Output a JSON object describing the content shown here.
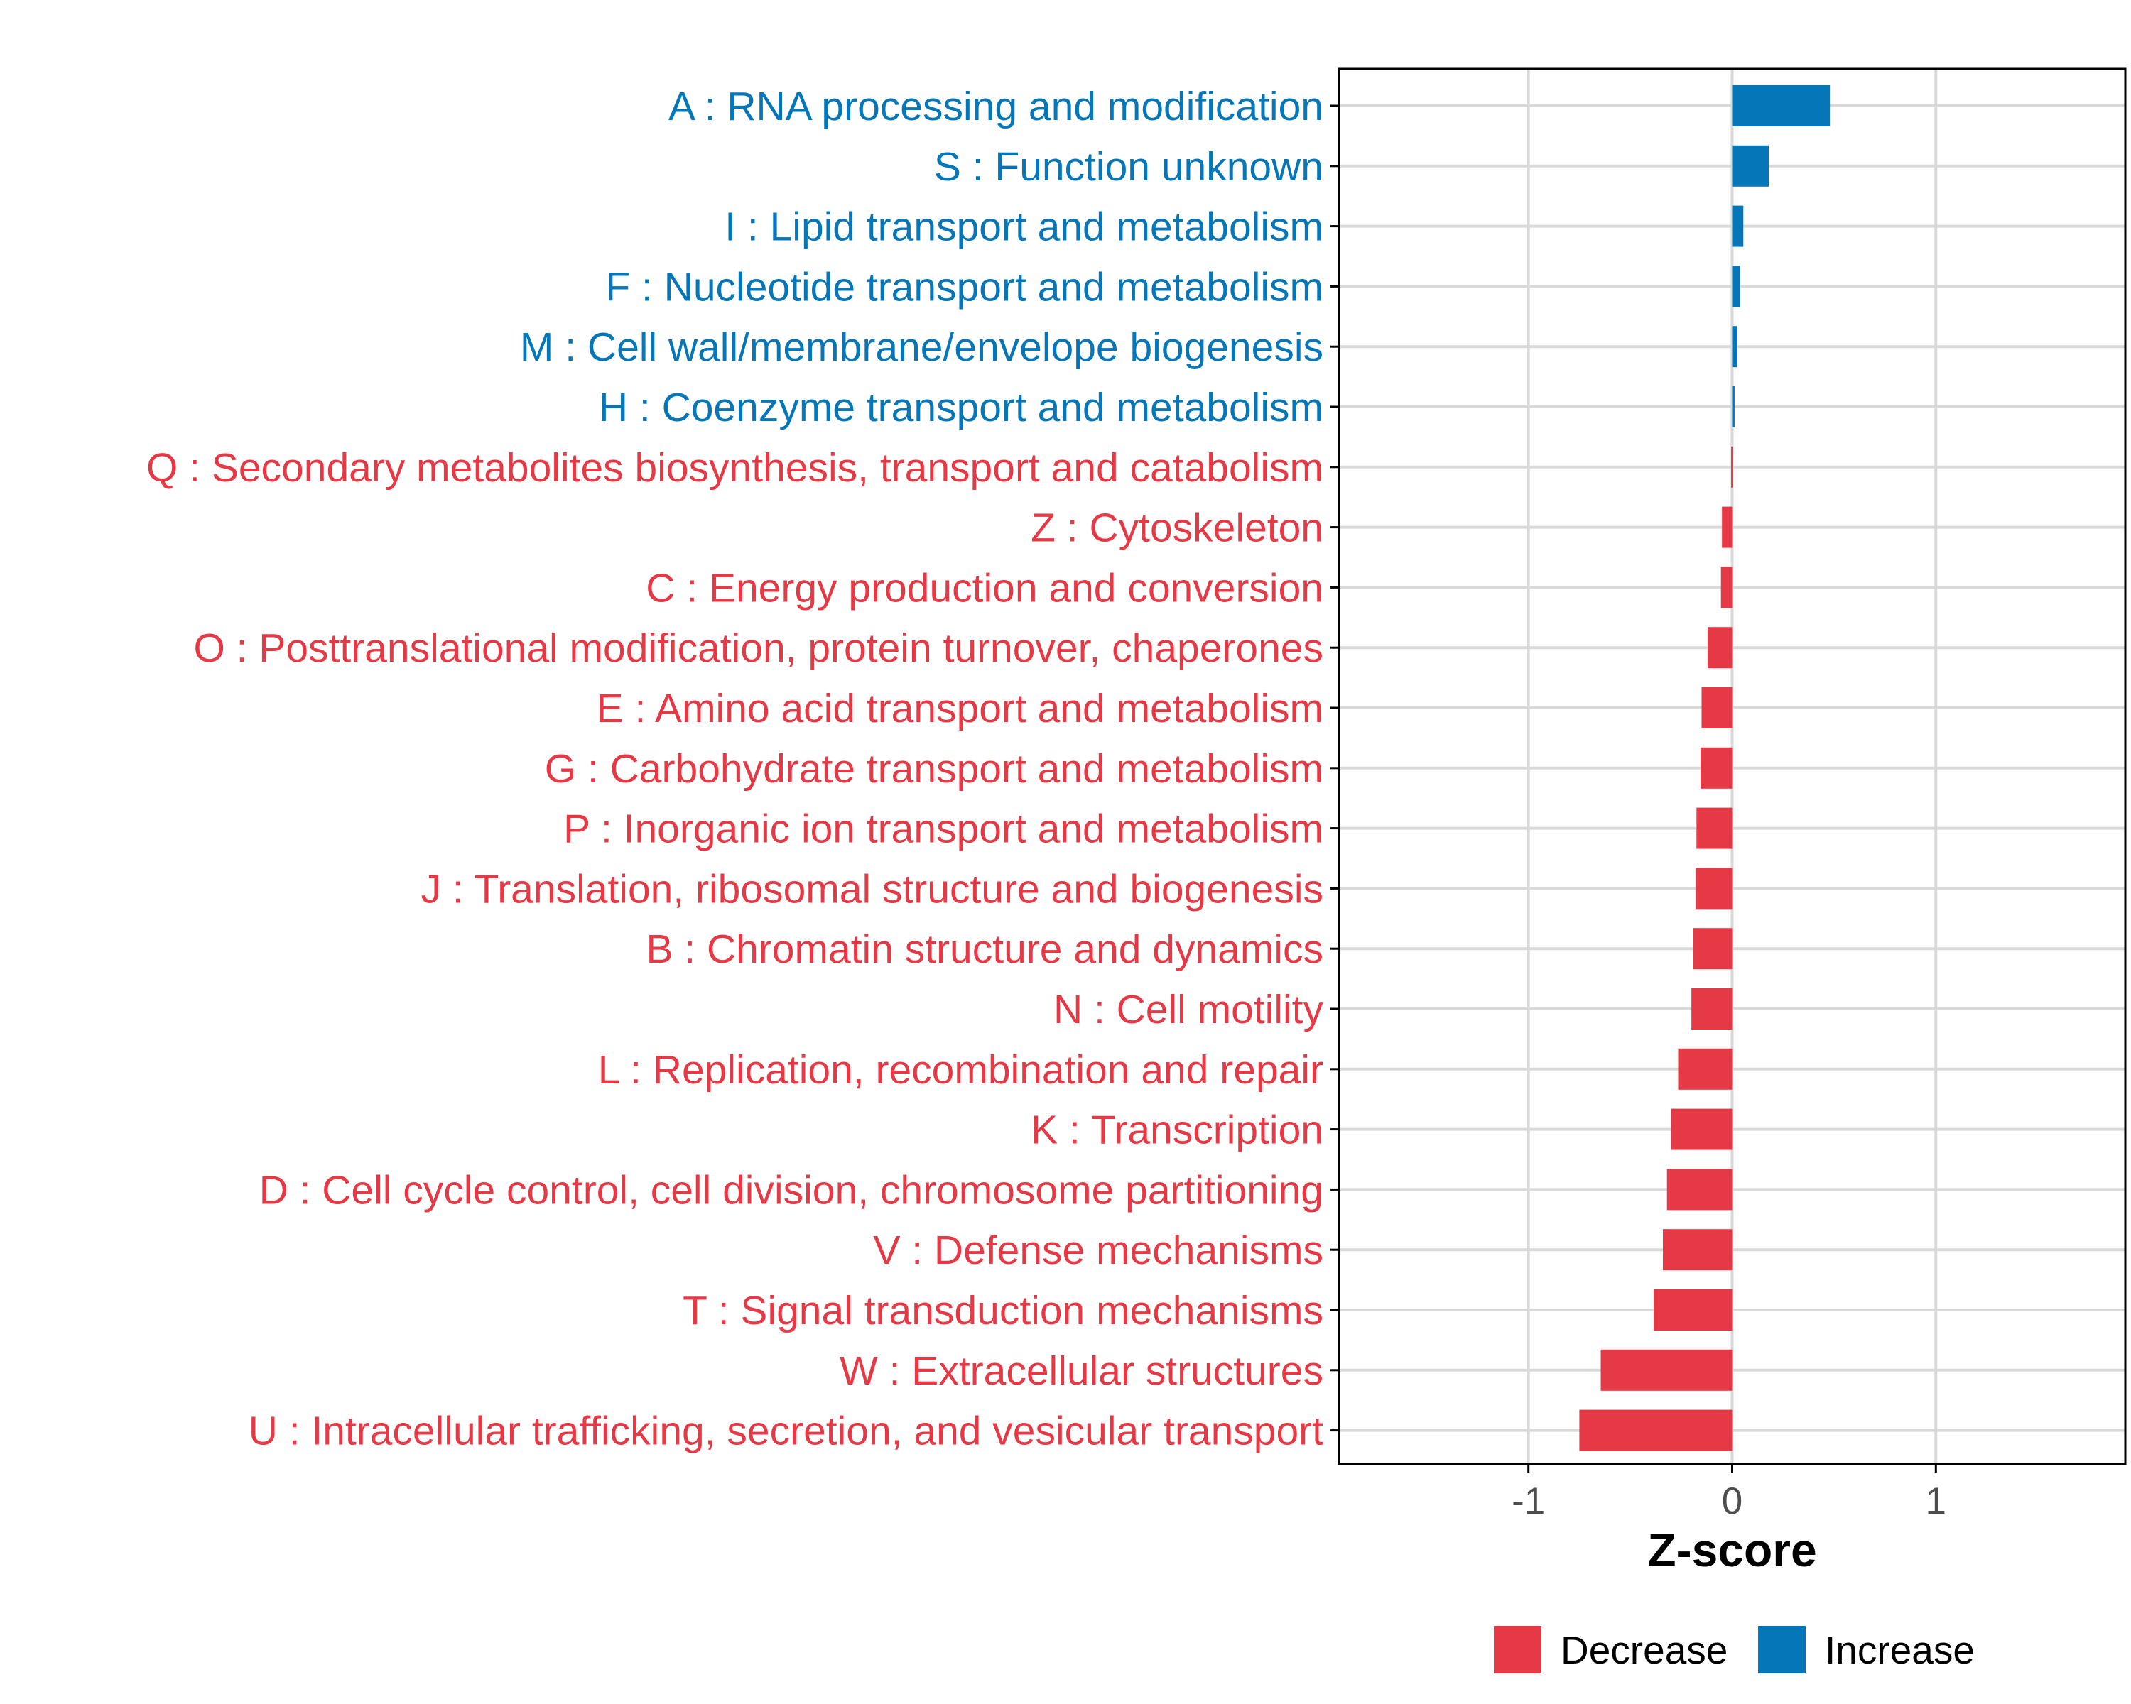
{
  "colors": {
    "decrease": "#e63946",
    "increase": "#0577b8",
    "grid": "#d9d9d9",
    "axis": "#000000",
    "tick_text": "#4d4d4d"
  },
  "chart_data": {
    "type": "bar",
    "orientation": "horizontal",
    "title": "",
    "xlabel": "Z-score",
    "ylabel": "",
    "xlim": [
      -1.93,
      1.93
    ],
    "x_ticks": [
      -1,
      0,
      1
    ],
    "x_tick_labels": [
      "-1",
      "0",
      "1"
    ],
    "grid": true,
    "legend_position": "bottom",
    "legend": [
      {
        "label": "Decrease",
        "color_key": "decrease"
      },
      {
        "label": "Increase",
        "color_key": "increase"
      }
    ],
    "categories": [
      "A : RNA processing and modification",
      "S : Function unknown",
      "I : Lipid transport and metabolism",
      "F : Nucleotide transport and metabolism",
      "M : Cell wall/membrane/envelope biogenesis",
      "H : Coenzyme transport and metabolism",
      "Q : Secondary metabolites biosynthesis, transport and catabolism",
      "Z : Cytoskeleton",
      "C : Energy production and conversion",
      "O : Posttranslational modification, protein turnover, chaperones",
      "E : Amino acid transport and metabolism",
      "G : Carbohydrate transport and metabolism",
      "P : Inorganic ion transport and metabolism",
      "J : Translation, ribosomal structure and biogenesis",
      "B : Chromatin structure and dynamics",
      "N : Cell motility",
      "L : Replication, recombination and repair",
      "K : Transcription",
      "D : Cell cycle control, cell division, chromosome partitioning",
      "V : Defense mechanisms",
      "T : Signal transduction mechanisms",
      "W : Extracellular structures",
      "U : Intracellular trafficking, secretion, and vesicular transport"
    ],
    "values": [
      0.48,
      0.18,
      0.055,
      0.04,
      0.025,
      0.012,
      -0.005,
      -0.05,
      -0.055,
      -0.12,
      -0.15,
      -0.155,
      -0.175,
      -0.18,
      -0.19,
      -0.2,
      -0.265,
      -0.3,
      -0.32,
      -0.34,
      -0.385,
      -0.645,
      -0.75
    ],
    "groups": [
      "Increase",
      "Increase",
      "Increase",
      "Increase",
      "Increase",
      "Increase",
      "Decrease",
      "Decrease",
      "Decrease",
      "Decrease",
      "Decrease",
      "Decrease",
      "Decrease",
      "Decrease",
      "Decrease",
      "Decrease",
      "Decrease",
      "Decrease",
      "Decrease",
      "Decrease",
      "Decrease",
      "Decrease",
      "Decrease"
    ]
  }
}
